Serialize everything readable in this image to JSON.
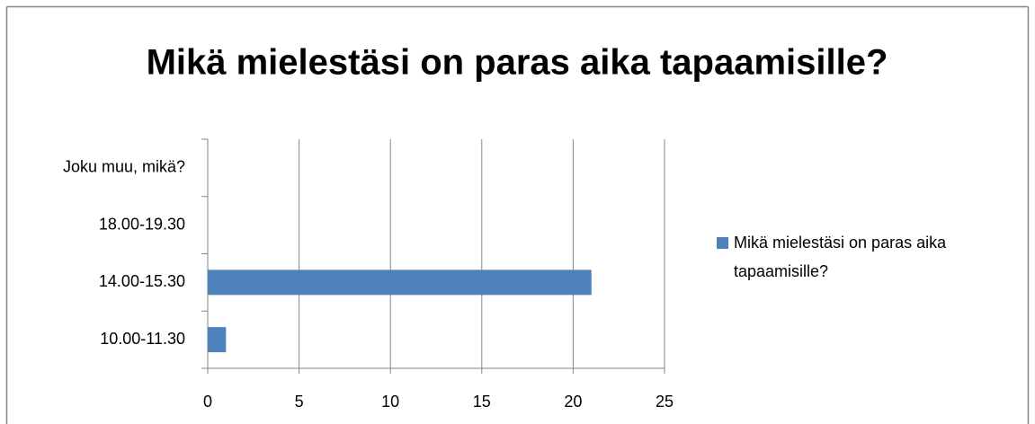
{
  "chart_data": {
    "type": "bar",
    "orientation": "horizontal",
    "title": "Mikä mielestäsi on paras aika tapaamisille?",
    "categories": [
      "10.00-11.30",
      "14.00-15.30",
      "18.00-19.30",
      "Joku muu, mikä?"
    ],
    "series": [
      {
        "name": "Mikä mielestäsi on paras aika tapaamisille?",
        "color": "#4f81bd",
        "values": [
          1,
          21,
          0,
          0
        ]
      }
    ],
    "xlim": [
      0,
      25
    ],
    "xticks": [
      0,
      5,
      10,
      15,
      20,
      25
    ],
    "grid": true,
    "legend": "right"
  }
}
